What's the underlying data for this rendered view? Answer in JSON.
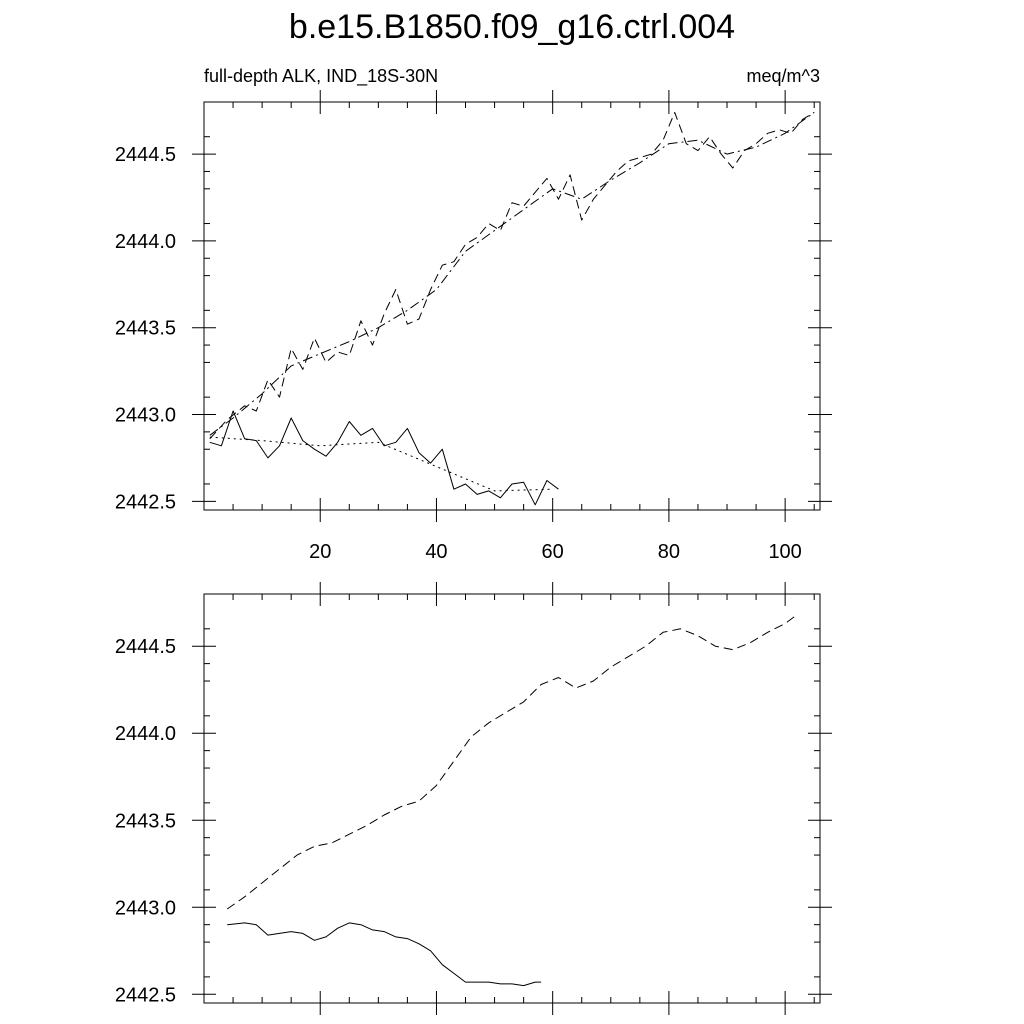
{
  "figure": {
    "title": "b.e15.B1850.f09_g16.ctrl.004",
    "subtitle_left": "full-depth ALK, IND_18S-30N",
    "subtitle_right": "meq/m^3"
  },
  "colors": {
    "line": "#000000",
    "background": "#ffffff"
  },
  "chart_data": [
    {
      "type": "line",
      "panel": "top",
      "title": "",
      "xlabel": "",
      "ylabel": "",
      "xlim": [
        0,
        106
      ],
      "ylim": [
        2442.45,
        2444.8
      ],
      "xticks": [
        20,
        40,
        60,
        80,
        100
      ],
      "xtick_labels": [
        "20",
        "40",
        "60",
        "80",
        "100"
      ],
      "yticks": [
        2442.5,
        2443.0,
        2443.5,
        2444.0,
        2444.5
      ],
      "ytick_labels": [
        "2442.5",
        "2443.0",
        "2443.5",
        "2444.0",
        "2444.5"
      ],
      "grid": false,
      "series": [
        {
          "style": "solid",
          "x": [
            1,
            3,
            5,
            7,
            9,
            11,
            13,
            15,
            17,
            19,
            21,
            23,
            25,
            27,
            29,
            31,
            33,
            35,
            37,
            39,
            41,
            43,
            45,
            47,
            49,
            51,
            53,
            55,
            57,
            59,
            61
          ],
          "y": [
            2442.84,
            2442.82,
            2443.02,
            2442.86,
            2442.85,
            2442.75,
            2442.82,
            2442.98,
            2442.85,
            2442.8,
            2442.76,
            2442.84,
            2442.96,
            2442.88,
            2442.92,
            2442.82,
            2442.84,
            2442.92,
            2442.78,
            2442.72,
            2442.8,
            2442.57,
            2442.6,
            2442.54,
            2442.56,
            2442.52,
            2442.6,
            2442.61,
            2442.48,
            2442.62,
            2442.57
          ]
        },
        {
          "style": "dotted",
          "x": [
            1,
            10,
            20,
            30,
            40,
            50,
            60
          ],
          "y": [
            2442.87,
            2442.85,
            2442.82,
            2442.84,
            2442.7,
            2442.56,
            2442.57
          ]
        },
        {
          "style": "dashed",
          "x": [
            1,
            4,
            7,
            9,
            11,
            13,
            15,
            17,
            19,
            21,
            23,
            25,
            27,
            29,
            31,
            33,
            35,
            37,
            39,
            41,
            43,
            45,
            47,
            49,
            51,
            53,
            55,
            57,
            59,
            61,
            63,
            65,
            67,
            69,
            71,
            73,
            75,
            77,
            79,
            81,
            83,
            85,
            87,
            89,
            91,
            93,
            95,
            97,
            99,
            101,
            103,
            105
          ],
          "y": [
            2442.86,
            2442.97,
            2443.05,
            2443.02,
            2443.2,
            2443.1,
            2443.38,
            2443.26,
            2443.44,
            2443.3,
            2443.36,
            2443.34,
            2443.54,
            2443.4,
            2443.58,
            2443.72,
            2443.52,
            2443.55,
            2443.72,
            2443.86,
            2443.88,
            2443.98,
            2444.02,
            2444.1,
            2444.06,
            2444.22,
            2444.2,
            2444.28,
            2444.36,
            2444.24,
            2444.38,
            2444.12,
            2444.24,
            2444.32,
            2444.4,
            2444.46,
            2444.48,
            2444.5,
            2444.58,
            2444.74,
            2444.56,
            2444.52,
            2444.6,
            2444.5,
            2444.42,
            2444.52,
            2444.56,
            2444.62,
            2444.64,
            2444.62,
            2444.7,
            2444.74
          ]
        },
        {
          "style": "dash-dot",
          "x": [
            1,
            5,
            10,
            15,
            20,
            25,
            30,
            35,
            40,
            45,
            50,
            55,
            60,
            65,
            70,
            75,
            80,
            85,
            90,
            95,
            100,
            105
          ],
          "y": [
            2442.88,
            2442.98,
            2443.12,
            2443.28,
            2443.35,
            2443.42,
            2443.5,
            2443.6,
            2443.72,
            2443.94,
            2444.06,
            2444.18,
            2444.3,
            2444.24,
            2444.35,
            2444.45,
            2444.56,
            2444.58,
            2444.5,
            2444.54,
            2444.62,
            2444.74
          ]
        }
      ]
    },
    {
      "type": "line",
      "panel": "bottom",
      "title": "",
      "xlabel": "",
      "ylabel": "",
      "xlim": [
        0,
        106
      ],
      "ylim": [
        2442.45,
        2444.8
      ],
      "xticks": [
        20,
        40,
        60,
        80,
        100
      ],
      "xtick_labels": [],
      "yticks": [
        2442.5,
        2443.0,
        2443.5,
        2444.0,
        2444.5
      ],
      "ytick_labels": [
        "2442.5",
        "2443.0",
        "2443.5",
        "2444.0",
        "2444.5"
      ],
      "grid": false,
      "series": [
        {
          "style": "solid",
          "x": [
            4,
            7,
            9,
            11,
            13,
            15,
            17,
            19,
            21,
            23,
            25,
            27,
            29,
            31,
            33,
            35,
            37,
            39,
            41,
            43,
            45,
            47,
            49,
            51,
            53,
            55,
            57,
            58
          ],
          "y": [
            2442.9,
            2442.91,
            2442.9,
            2442.84,
            2442.85,
            2442.86,
            2442.85,
            2442.81,
            2442.83,
            2442.88,
            2442.91,
            2442.9,
            2442.87,
            2442.86,
            2442.83,
            2442.82,
            2442.79,
            2442.75,
            2442.67,
            2442.62,
            2442.57,
            2442.57,
            2442.57,
            2442.56,
            2442.56,
            2442.55,
            2442.57,
            2442.57
          ]
        },
        {
          "style": "dashed",
          "x": [
            4,
            7,
            10,
            13,
            16,
            19,
            22,
            25,
            28,
            31,
            34,
            37,
            40,
            43,
            46,
            49,
            52,
            55,
            58,
            61,
            64,
            67,
            70,
            73,
            76,
            79,
            82,
            85,
            88,
            91,
            94,
            97,
            100,
            102
          ],
          "y": [
            2442.99,
            2443.06,
            2443.14,
            2443.22,
            2443.3,
            2443.35,
            2443.37,
            2443.42,
            2443.47,
            2443.53,
            2443.58,
            2443.61,
            2443.7,
            2443.84,
            2443.98,
            2444.06,
            2444.12,
            2444.18,
            2444.28,
            2444.32,
            2444.26,
            2444.3,
            2444.38,
            2444.44,
            2444.5,
            2444.58,
            2444.6,
            2444.56,
            2444.5,
            2444.48,
            2444.52,
            2444.58,
            2444.63,
            2444.68
          ]
        }
      ]
    }
  ]
}
